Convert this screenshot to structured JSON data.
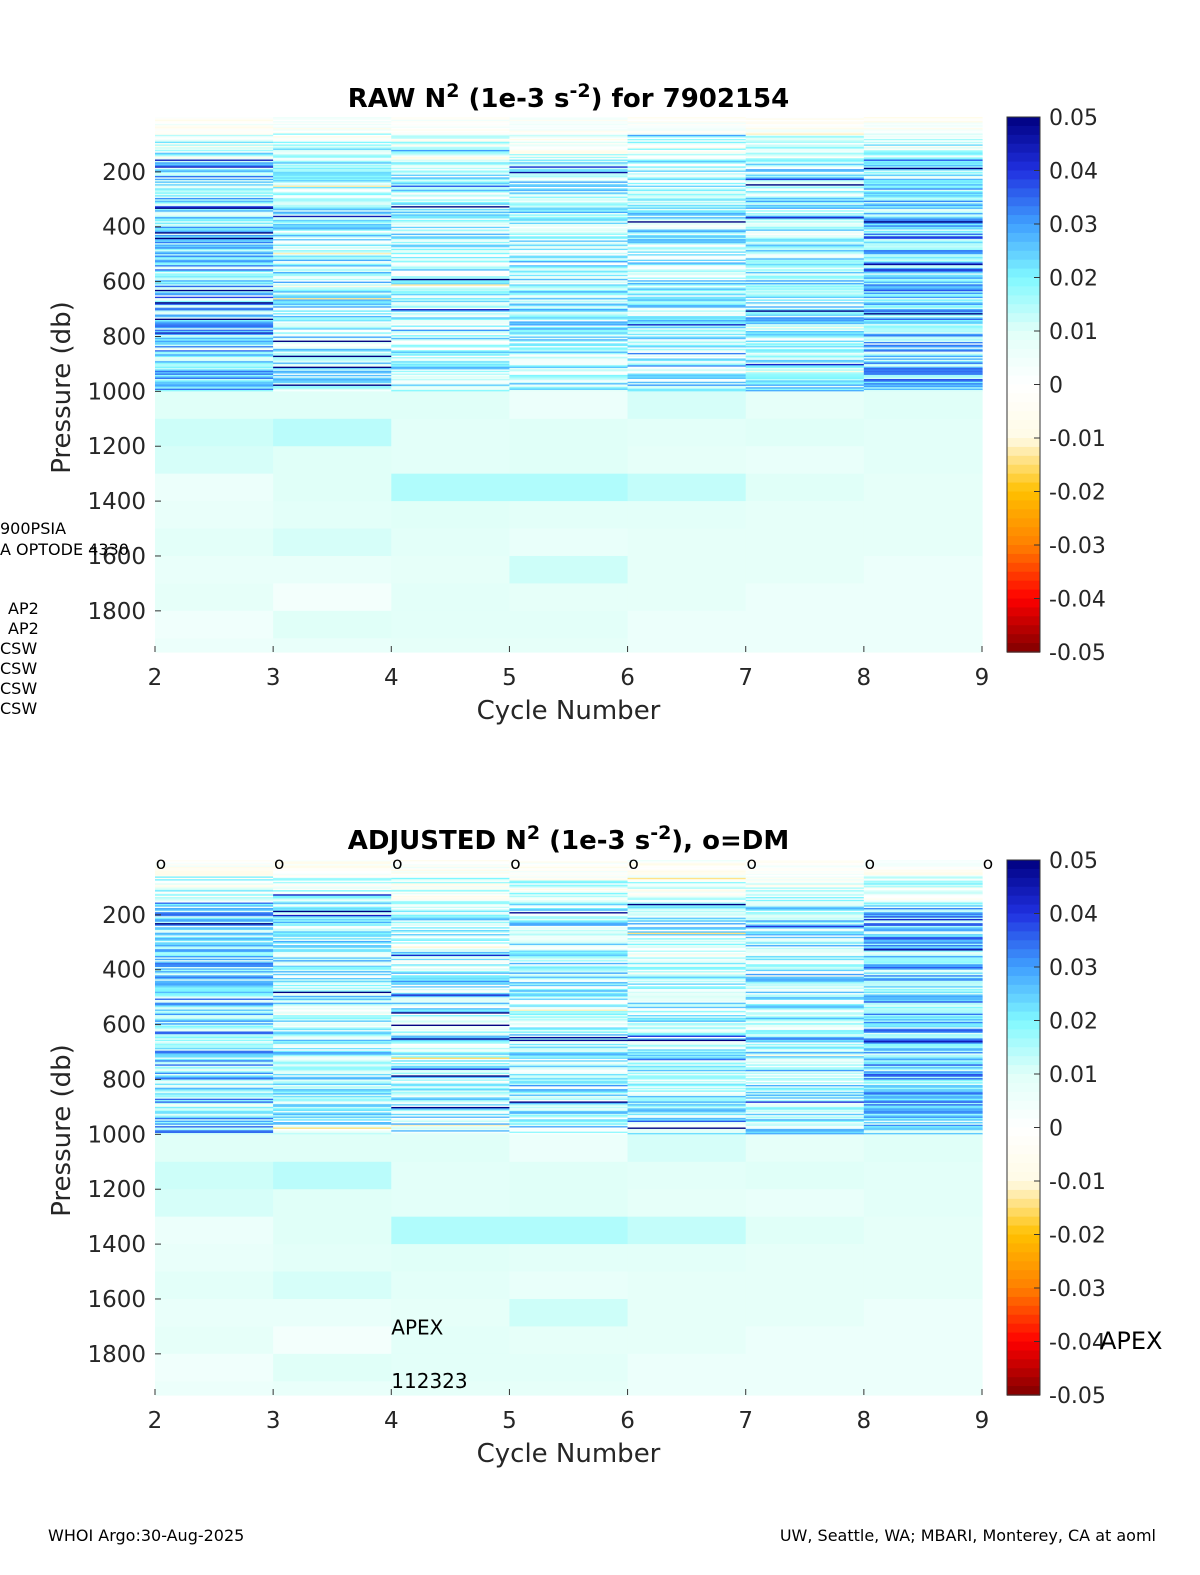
{
  "footer": {
    "left": "WHOI Argo:30-Aug-2025",
    "right": "UW, Seattle, WA; MBARI, Monterey, CA at aoml"
  },
  "side_labels": {
    "left_clipped": [
      "900PSIA",
      "A OPTODE 4330",
      "AP2",
      "AP2",
      "CSW",
      "CSW",
      "CSW",
      "CSW"
    ],
    "right_clipped": "APEX"
  },
  "colors": {
    "colormap": [
      "#800000",
      "#ff0000",
      "#ff8000",
      "#ffc000",
      "#fffbe6",
      "#ffffff",
      "#e0fff8",
      "#80f8ff",
      "#40a0ff",
      "#2030e0",
      "#000080"
    ]
  },
  "chart_data": [
    {
      "type": "heatmap",
      "title": "RAW N² (1e-3 s⁻²) for 7902154",
      "title_parts": {
        "pre": "RAW N",
        "sup1": "2",
        "mid": " (1e-3 s",
        "sup2": "-2",
        "post": ") for 7902154"
      },
      "xlabel": "Cycle Number",
      "ylabel": "Pressure (db)",
      "x_ticks": [
        2,
        3,
        4,
        5,
        6,
        7,
        8,
        9
      ],
      "xlim": [
        2,
        9
      ],
      "y_ticks": [
        200,
        400,
        600,
        800,
        1000,
        1200,
        1400,
        1600,
        1800
      ],
      "ylim": [
        0,
        1950
      ],
      "y_reversed": true,
      "colorbar": {
        "ticks": [
          0.05,
          0.04,
          0.03,
          0.02,
          0.01,
          0,
          -0.01,
          -0.02,
          -0.03,
          -0.04,
          -0.05
        ],
        "range": [
          -0.05,
          0.05
        ]
      },
      "cycles": [
        2,
        3,
        4,
        5,
        6,
        7,
        8
      ],
      "deep_bins": [
        1000,
        1100,
        1200,
        1300,
        1400,
        1500,
        1600,
        1700,
        1800,
        1900
      ],
      "deep_values": [
        [
          0.01,
          0.012,
          0.011,
          0.006,
          0.007,
          0.009,
          0.007,
          0.008,
          0.005,
          0.006
        ],
        [
          0.01,
          0.014,
          0.01,
          0.01,
          0.009,
          0.011,
          0.007,
          0.004,
          0.01,
          0.007
        ],
        [
          0.01,
          0.009,
          0.009,
          0.015,
          0.01,
          0.009,
          0.008,
          0.009,
          0.009,
          0.008
        ],
        [
          0.006,
          0.01,
          0.01,
          0.015,
          0.009,
          0.007,
          0.012,
          0.008,
          0.009,
          0.008
        ],
        [
          0.011,
          0.009,
          0.008,
          0.013,
          0.009,
          0.008,
          0.008,
          0.008,
          0.006,
          0.006
        ],
        [
          0.008,
          0.01,
          0.007,
          0.01,
          0.008,
          0.008,
          0.008,
          0.006,
          0.006,
          0.006
        ],
        [
          0.01,
          0.009,
          0.009,
          0.008,
          0.008,
          0.008,
          0.006,
          0.006,
          0.006,
          0.006
        ]
      ],
      "upper_bias": [
        0.018,
        0.012,
        0.01,
        0.012,
        0.011,
        0.013,
        0.02
      ],
      "dm_markers": false
    },
    {
      "type": "heatmap",
      "title": "ADJUSTED N² (1e-3 s⁻²), o=DM",
      "title_parts": {
        "pre": "ADJUSTED N",
        "sup1": "2",
        "mid": " (1e-3 s",
        "sup2": "-2",
        "post": "), o=DM"
      },
      "xlabel": "Cycle Number",
      "ylabel": "Pressure (db)",
      "x_ticks": [
        2,
        3,
        4,
        5,
        6,
        7,
        8,
        9
      ],
      "xlim": [
        2,
        9
      ],
      "y_ticks": [
        200,
        400,
        600,
        800,
        1000,
        1200,
        1400,
        1600,
        1800
      ],
      "ylim": [
        0,
        1950
      ],
      "y_reversed": true,
      "colorbar": {
        "ticks": [
          0.05,
          0.04,
          0.03,
          0.02,
          0.01,
          0,
          -0.01,
          -0.02,
          -0.03,
          -0.04,
          -0.05
        ],
        "range": [
          -0.05,
          0.05
        ]
      },
      "cycles": [
        2,
        3,
        4,
        5,
        6,
        7,
        8
      ],
      "deep_bins": [
        1000,
        1100,
        1200,
        1300,
        1400,
        1500,
        1600,
        1700,
        1800,
        1900
      ],
      "deep_values": [
        [
          0.01,
          0.012,
          0.011,
          0.006,
          0.007,
          0.009,
          0.007,
          0.008,
          0.005,
          0.006
        ],
        [
          0.01,
          0.014,
          0.01,
          0.01,
          0.009,
          0.011,
          0.007,
          0.004,
          0.01,
          0.007
        ],
        [
          0.01,
          0.009,
          0.009,
          0.015,
          0.01,
          0.009,
          0.008,
          0.009,
          0.009,
          0.008
        ],
        [
          0.006,
          0.01,
          0.01,
          0.015,
          0.009,
          0.007,
          0.012,
          0.008,
          0.009,
          0.008
        ],
        [
          0.011,
          0.009,
          0.008,
          0.013,
          0.009,
          0.008,
          0.008,
          0.008,
          0.006,
          0.006
        ],
        [
          0.008,
          0.01,
          0.007,
          0.01,
          0.008,
          0.008,
          0.008,
          0.006,
          0.006,
          0.006
        ],
        [
          0.01,
          0.009,
          0.009,
          0.008,
          0.008,
          0.008,
          0.006,
          0.006,
          0.006,
          0.006
        ]
      ],
      "upper_bias": [
        0.018,
        0.012,
        0.01,
        0.012,
        0.011,
        0.013,
        0.02
      ],
      "dm_markers": true,
      "dm_marker_symbol": "o",
      "dm_marker_cycles": [
        2,
        3,
        4,
        5,
        6,
        7,
        8,
        9
      ],
      "annotations": [
        "APEX",
        "112323"
      ]
    }
  ]
}
